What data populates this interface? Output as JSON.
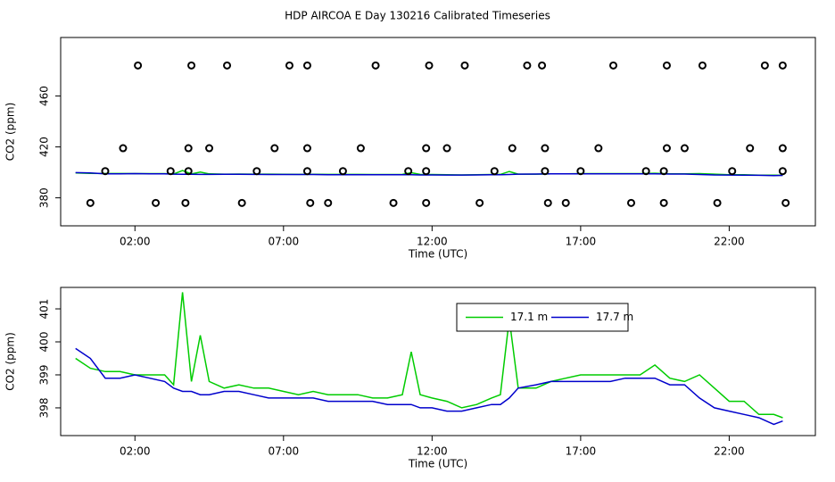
{
  "chart_data": [
    {
      "type": "scatter",
      "title": "HDP AIRCOA E  Day 130216  Calibrated Timeseries",
      "x_label": "Time (UTC)",
      "y_label": "CO2 (ppm)",
      "xlim": [
        -0.5,
        24.9
      ],
      "ylim": [
        358,
        506
      ],
      "xticks": [
        {
          "value": 2,
          "label": "02:00"
        },
        {
          "value": 7,
          "label": "07:00"
        },
        {
          "value": 12,
          "label": "12:00"
        },
        {
          "value": 17,
          "label": "17:00"
        },
        {
          "value": 22,
          "label": "22:00"
        }
      ],
      "yticks": [
        380,
        420,
        460
      ],
      "color": "#000000",
      "x": [
        2.1,
        3.9,
        5.1,
        7.2,
        7.8,
        10.1,
        11.9,
        13.1,
        15.2,
        15.7,
        18.1,
        19.9,
        21.1,
        23.2,
        23.8,
        1.6,
        3.8,
        4.5,
        6.7,
        7.8,
        9.6,
        11.8,
        12.5,
        14.7,
        15.8,
        17.6,
        19.9,
        20.5,
        22.7,
        23.8,
        1.0,
        3.2,
        3.8,
        6.1,
        7.8,
        9.0,
        11.2,
        11.8,
        14.1,
        15.8,
        17.0,
        19.2,
        19.8,
        22.1,
        23.8,
        0.5,
        2.7,
        3.7,
        5.6,
        7.9,
        8.5,
        10.7,
        11.8,
        13.6,
        15.9,
        16.5,
        18.7,
        19.8,
        21.6,
        23.9
      ],
      "values": [
        484,
        484,
        484,
        484,
        484,
        484,
        484,
        484,
        484,
        484,
        484,
        484,
        484,
        484,
        484,
        419,
        419,
        419,
        419,
        419,
        419,
        419,
        419,
        419,
        419,
        419,
        419,
        419,
        419,
        419,
        401,
        401,
        401,
        401,
        401,
        401,
        401,
        401,
        401,
        401,
        401,
        401,
        401,
        401,
        401,
        376,
        376,
        376,
        376,
        376,
        376,
        376,
        376,
        376,
        376,
        376,
        376,
        376,
        376,
        376
      ]
    },
    {
      "type": "line",
      "x_label": "Time (UTC)",
      "y_label": "CO2 (ppm)",
      "xlim": [
        -0.5,
        24.9
      ],
      "ylim": [
        397.16,
        401.65
      ],
      "xticks": [
        {
          "value": 2,
          "label": "02:00"
        },
        {
          "value": 7,
          "label": "07:00"
        },
        {
          "value": 12,
          "label": "12:00"
        },
        {
          "value": 17,
          "label": "17:00"
        },
        {
          "value": 22,
          "label": "22:00"
        }
      ],
      "yticks": [
        398,
        399,
        400,
        401
      ],
      "legend": "top",
      "x": [
        0,
        0.5,
        1,
        1.5,
        2,
        2.5,
        3,
        3.3,
        3.6,
        3.9,
        4.2,
        4.5,
        5,
        5.5,
        6,
        6.5,
        7,
        7.5,
        8,
        8.5,
        9,
        9.5,
        10,
        10.5,
        11,
        11.3,
        11.6,
        12,
        12.5,
        13,
        13.5,
        14,
        14.3,
        14.6,
        14.9,
        15.5,
        16,
        16.5,
        17,
        17.5,
        18,
        18.5,
        19,
        19.5,
        20,
        20.5,
        21,
        21.5,
        22,
        22.5,
        23,
        23.5,
        23.8
      ],
      "series": [
        {
          "name": "17.1 m",
          "color": "#00cc00",
          "values": [
            399.5,
            399.2,
            399.1,
            399.1,
            399.0,
            399.0,
            399.0,
            398.7,
            401.5,
            398.8,
            400.2,
            398.8,
            398.6,
            398.7,
            398.6,
            398.6,
            398.5,
            398.4,
            398.5,
            398.4,
            398.4,
            398.4,
            398.3,
            398.3,
            398.4,
            399.7,
            398.4,
            398.3,
            398.2,
            398.0,
            398.1,
            398.3,
            398.4,
            400.7,
            398.6,
            398.6,
            398.8,
            398.9,
            399.0,
            399.0,
            399.0,
            399.0,
            399.0,
            399.3,
            398.9,
            398.8,
            399.0,
            398.6,
            398.2,
            398.2,
            397.8,
            397.8,
            397.7
          ]
        },
        {
          "name": "17.7 m",
          "color": "#0000cc",
          "values": [
            399.8,
            399.5,
            398.9,
            398.9,
            399.0,
            398.9,
            398.8,
            398.6,
            398.5,
            398.5,
            398.4,
            398.4,
            398.5,
            398.5,
            398.4,
            398.3,
            398.3,
            398.3,
            398.3,
            398.2,
            398.2,
            398.2,
            398.2,
            398.1,
            398.1,
            398.1,
            398.0,
            398.0,
            397.9,
            397.9,
            398.0,
            398.1,
            398.1,
            398.3,
            398.6,
            398.7,
            398.8,
            398.8,
            398.8,
            398.8,
            398.8,
            398.9,
            398.9,
            398.9,
            398.7,
            398.7,
            398.3,
            398.0,
            397.9,
            397.8,
            397.7,
            397.5,
            397.6
          ]
        }
      ]
    }
  ]
}
